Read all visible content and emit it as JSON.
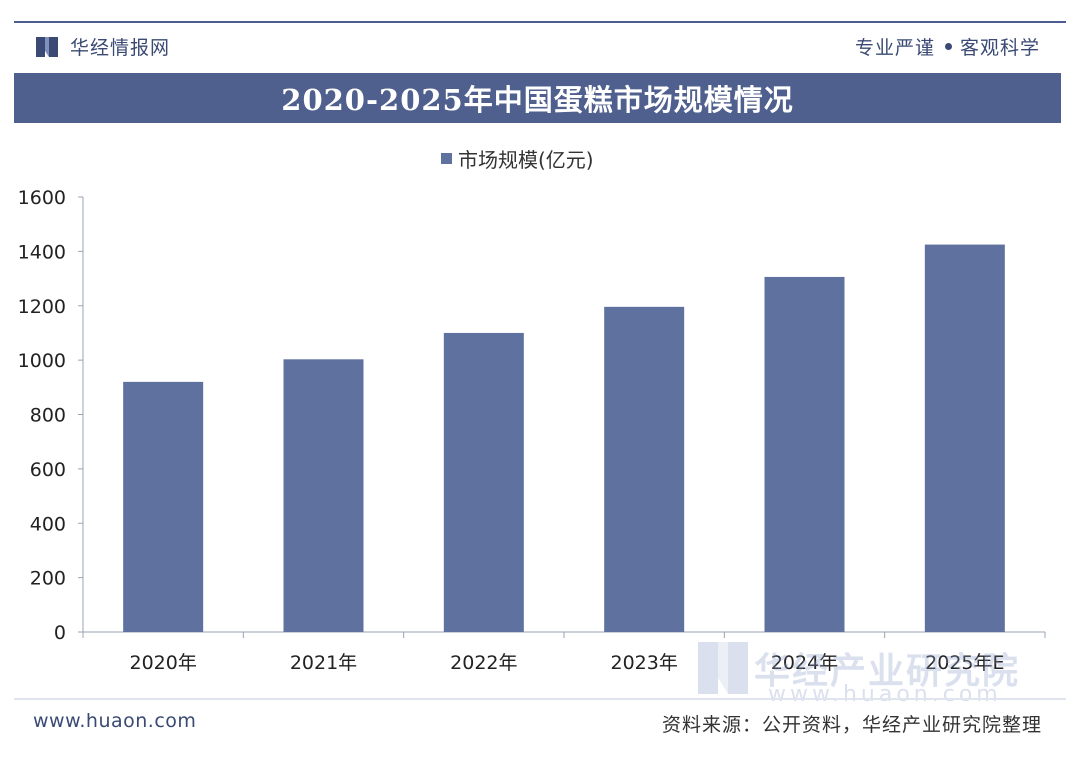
{
  "header": {
    "brand": "华经情报网",
    "slogan_left": "专业严谨",
    "slogan_right": "客观科学"
  },
  "title": "2020-2025年中国蛋糕市场规模情况",
  "footer": {
    "website": "www.huaon.com",
    "source": "资料来源：公开资料，华经产业研究院整理"
  },
  "watermark": {
    "cn": "华经产业研究院",
    "en": "www.huaon.com"
  },
  "colors": {
    "bar": "#5f719f",
    "title_bar": "#4f5f8e"
  },
  "chart_data": {
    "type": "bar",
    "title": "2020-2025年中国蛋糕市场规模情况",
    "categories": [
      "2020年",
      "2021年",
      "2022年",
      "2023年",
      "2024年",
      "2025年E"
    ],
    "series": [
      {
        "name": "市场规模(亿元)",
        "values": [
          920,
          1003,
          1100,
          1196,
          1306,
          1425
        ]
      }
    ],
    "ylim": [
      0,
      1600
    ],
    "yticks": [
      0,
      200,
      400,
      600,
      800,
      1000,
      1200,
      1400,
      1600
    ],
    "xlabel": "",
    "ylabel": "",
    "legend": "top-center",
    "grid": false
  }
}
